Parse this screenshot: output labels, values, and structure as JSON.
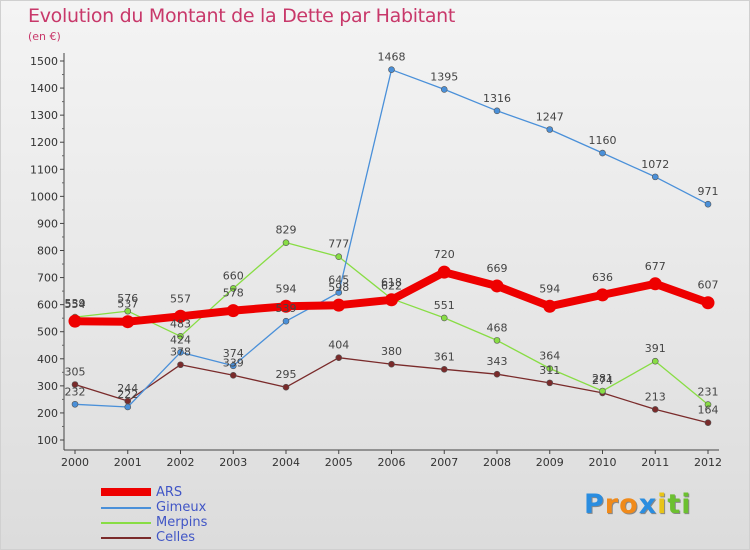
{
  "header": {
    "title": "Evolution du Montant de la Dette par Habitant",
    "subtitle": "(en €)"
  },
  "chart_data": {
    "type": "line",
    "title": "Evolution du Montant de la Dette par Habitant",
    "subtitle": "(en €)",
    "xlabel": "",
    "ylabel": "",
    "x": [
      "2000",
      "2001",
      "2002",
      "2003",
      "2004",
      "2005",
      "2006",
      "2007",
      "2008",
      "2009",
      "2010",
      "2011",
      "2012"
    ],
    "ylim": [
      100,
      1500
    ],
    "y_ticks": [
      100,
      200,
      300,
      400,
      500,
      600,
      700,
      800,
      900,
      1000,
      1100,
      1200,
      1300,
      1400,
      1500
    ],
    "grid": false,
    "legend_position": "bottom-left",
    "series": [
      {
        "name": "ARS",
        "color": "#ee0000",
        "values": [
          539,
          537,
          557,
          578,
          594,
          598,
          618,
          720,
          669,
          594,
          636,
          677,
          607
        ],
        "labels": [
          "539",
          "537",
          "557",
          "578",
          "594",
          "598",
          "618",
          "720",
          "669",
          "594",
          "636",
          "677",
          "607"
        ]
      },
      {
        "name": "Gimeux",
        "color": "#4a90d9",
        "values": [
          232,
          222,
          424,
          374,
          539,
          645,
          1468,
          1395,
          1316,
          1247,
          1160,
          1072,
          971
        ],
        "labels": [
          "232",
          "222",
          "424",
          "374",
          "539",
          "645",
          "1468",
          "1395",
          "1316",
          "1247",
          "1160",
          "1072",
          "971"
        ]
      },
      {
        "name": "Merpins",
        "color": "#88dd44",
        "values": [
          554,
          576,
          483,
          660,
          829,
          777,
          622,
          551,
          468,
          364,
          281,
          391,
          231
        ],
        "labels": [
          "554",
          "576",
          "483",
          "660",
          "829",
          "777",
          "622",
          "551",
          "468",
          "364",
          "281",
          "391",
          "231"
        ]
      },
      {
        "name": "Celles",
        "color": "#7a2b2b",
        "values": [
          305,
          244,
          378,
          339,
          295,
          404,
          380,
          361,
          343,
          311,
          274,
          213,
          164
        ],
        "labels": [
          "305",
          "244",
          "378",
          "339",
          "295",
          "404",
          "380",
          "361",
          "343",
          "311",
          "274",
          "213",
          "164"
        ]
      }
    ]
  },
  "logo": {
    "letters": [
      "P",
      "r",
      "o",
      "x",
      "i",
      "t",
      "i"
    ],
    "colors": [
      "#2a8de0",
      "#f08a1a",
      "#f08a1a",
      "#2a8de0",
      "#e8c418",
      "#6cc030",
      "#6cc030"
    ]
  }
}
